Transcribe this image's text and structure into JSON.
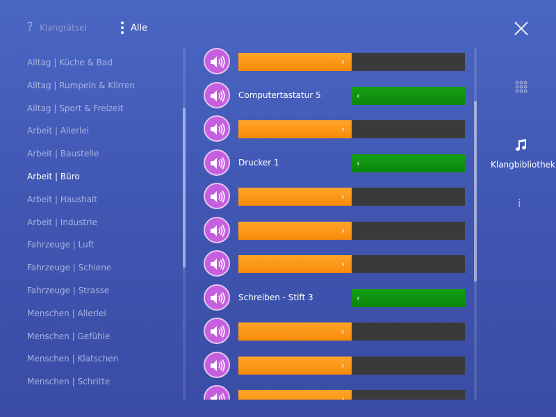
{
  "header": {
    "quiz": {
      "icon": "question-mark-icon",
      "label": "Klangrätsel"
    },
    "filter": {
      "icon": "vertical-dots-icon",
      "label": "Alle"
    },
    "close": {
      "icon": "close-icon"
    }
  },
  "categories": {
    "active_index": 5,
    "items": [
      "Alltag | Küche & Bad",
      "Alltag | Rumpeln & Klirren",
      "Alltag | Sport & Freizeit",
      "Arbeit | Allerlei",
      "Arbeit | Baustelle",
      "Arbeit | Büro",
      "Arbeit | Haushalt",
      "Arbeit | Industrie",
      "Fahrzeuge | Luft",
      "Fahrzeuge | Schiene",
      "Fahrzeuge | Strasse",
      "Menschen | Allerlei",
      "Menschen | Gefühle",
      "Menschen | Klatschen",
      "Menschen | Schritte"
    ]
  },
  "sounds": {
    "play_icon": "speaker-icon",
    "rows": [
      {
        "state": "hidden",
        "chevron": "›"
      },
      {
        "state": "revealed",
        "name": "Computertastatur 5",
        "chevron": "‹"
      },
      {
        "state": "hidden",
        "chevron": "›"
      },
      {
        "state": "revealed",
        "name": "Drucker 1",
        "chevron": "‹"
      },
      {
        "state": "hidden",
        "chevron": "›"
      },
      {
        "state": "hidden",
        "chevron": "›"
      },
      {
        "state": "hidden",
        "chevron": "›"
      },
      {
        "state": "revealed",
        "name": "Schreiben - Stift 3",
        "chevron": "‹"
      },
      {
        "state": "hidden",
        "chevron": "›"
      },
      {
        "state": "hidden",
        "chevron": "›"
      },
      {
        "state": "hidden",
        "chevron": "›"
      }
    ]
  },
  "nav": {
    "grid": {
      "icon": "grid-icon"
    },
    "library": {
      "icon": "music-note-icon",
      "label": "Klangbibliothek"
    },
    "info": {
      "icon": "info-icon",
      "label": "i"
    }
  },
  "colors": {
    "background": "#4558b8",
    "play_button": "#c65fdf",
    "hidden_bar": "#f98a08",
    "answer_bar": "#0b860b",
    "bar_track": "#3a3a3a"
  }
}
